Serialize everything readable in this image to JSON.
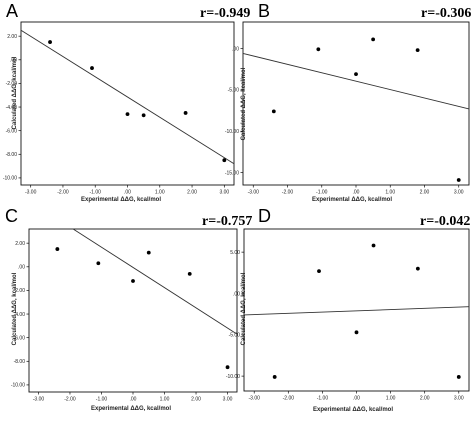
{
  "chart_data": [
    {
      "type": "scatter",
      "panel_label": "A",
      "annotation": "r=-0.949",
      "xlabel": "Experimental ΔΔG, kcal/mol",
      "ylabel": "Calculated ΔΔG, kcal/mol",
      "xlim": [
        -3.3,
        3.3
      ],
      "ylim": [
        -10.6,
        3.2
      ],
      "x_ticks": [
        "-3.00",
        "-2.00",
        "-1.00",
        ".00",
        "1.00",
        "2.00",
        "3.00"
      ],
      "y_ticks": [
        "2.00",
        ".00",
        "-2.00",
        "-4.00",
        "-6.00",
        "-8.00",
        "-10.00"
      ],
      "grid": false,
      "points": [
        {
          "x": -2.4,
          "y": 1.5
        },
        {
          "x": -1.1,
          "y": -0.7
        },
        {
          "x": 0.0,
          "y": -4.6
        },
        {
          "x": 0.5,
          "y": -4.7
        },
        {
          "x": 1.8,
          "y": -4.5
        },
        {
          "x": 3.0,
          "y": -8.5
        }
      ],
      "fit_line": {
        "x1": -3.3,
        "y1": 2.5,
        "x2": 3.3,
        "y2": -8.8
      }
    },
    {
      "type": "scatter",
      "panel_label": "B",
      "annotation": "r=-0.306",
      "xlabel": "Experimental ΔΔG, kcal/mol",
      "ylabel": "Calculated ΔΔG, kcal/mol",
      "xlim": [
        -3.3,
        3.3
      ],
      "ylim": [
        -16.5,
        3.2
      ],
      "x_ticks": [
        "-3.00",
        "-2.00",
        "-1.00",
        ".00",
        "1.00",
        "2.00",
        "3.00"
      ],
      "y_ticks": [
        ".00",
        "-5.00",
        "-10.00",
        "-15.00"
      ],
      "grid": false,
      "points": [
        {
          "x": -2.4,
          "y": -7.6
        },
        {
          "x": -1.1,
          "y": -0.1
        },
        {
          "x": 0.0,
          "y": -3.1
        },
        {
          "x": 0.5,
          "y": 1.1
        },
        {
          "x": 1.8,
          "y": -0.2
        },
        {
          "x": 3.0,
          "y": -15.9
        }
      ],
      "fit_line": {
        "x1": -3.3,
        "y1": -0.6,
        "x2": 3.3,
        "y2": -7.3
      }
    },
    {
      "type": "scatter",
      "panel_label": "C",
      "annotation": "r=-0.757",
      "xlabel": "Experimental ΔΔG, kcal/mol",
      "ylabel": "Calculated ΔΔG, kcal/mol",
      "xlim": [
        -3.3,
        3.3
      ],
      "ylim": [
        -10.6,
        3.2
      ],
      "x_ticks": [
        "-3.00",
        "-2.00",
        "-1.00",
        ".00",
        "1.00",
        "2.00",
        "3.00"
      ],
      "y_ticks": [
        "2.00",
        ".00",
        "-2.00",
        "-4.00",
        "-6.00",
        "-8.00",
        "-10.00"
      ],
      "grid": false,
      "points": [
        {
          "x": -2.4,
          "y": 1.5
        },
        {
          "x": -1.1,
          "y": 0.3
        },
        {
          "x": 0.0,
          "y": -1.2
        },
        {
          "x": 0.5,
          "y": 1.2
        },
        {
          "x": 1.8,
          "y": -0.6
        },
        {
          "x": 3.0,
          "y": -8.5
        }
      ],
      "fit_line": {
        "x1": -1.9,
        "y1": 3.2,
        "x2": 3.3,
        "y2": -5.7
      }
    },
    {
      "type": "scatter",
      "panel_label": "D",
      "annotation": "r=-0.042",
      "xlabel": "Experimental ΔΔG, kcal/mol",
      "ylabel": "Calculated ΔΔG, kcal/mol",
      "xlim": [
        -3.3,
        3.3
      ],
      "ylim": [
        -11.8,
        7.8
      ],
      "x_ticks": [
        "-3.00",
        "-2.00",
        "-1.00",
        ".00",
        "1.00",
        "2.00",
        "3.00"
      ],
      "y_ticks": [
        "5.00",
        ".00",
        "-5.00",
        "-10.00"
      ],
      "grid": false,
      "points": [
        {
          "x": -2.4,
          "y": -10.1
        },
        {
          "x": -1.1,
          "y": 2.7
        },
        {
          "x": 0.0,
          "y": -4.7
        },
        {
          "x": 0.5,
          "y": 5.8
        },
        {
          "x": 1.8,
          "y": 3.0
        },
        {
          "x": 3.0,
          "y": -10.1
        }
      ],
      "fit_line": {
        "x1": -3.3,
        "y1": -2.6,
        "x2": 3.3,
        "y2": -1.6
      }
    }
  ]
}
